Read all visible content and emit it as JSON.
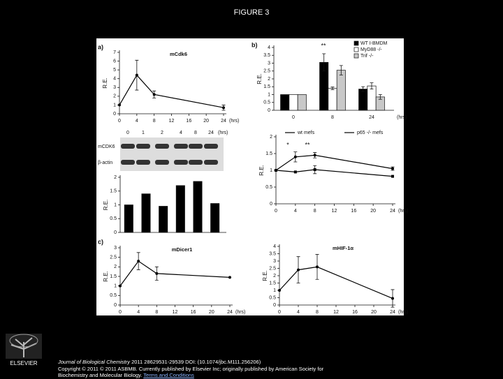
{
  "header": {
    "title": "FIGURE 3"
  },
  "blot": {
    "lanes": [
      "0",
      "1",
      "2",
      "4",
      "8",
      "24"
    ],
    "unit": "(hrs)",
    "rows": [
      "mCDK6",
      "β-actin"
    ]
  },
  "chart_data": [
    {
      "type": "line",
      "panel": "a)",
      "title": "mCdk6",
      "y_label": "R.E.",
      "x_label": "(hrs)",
      "color": "#000000",
      "x": [
        0,
        4,
        8,
        24
      ],
      "values": [
        1,
        4.4,
        2.2,
        0.7
      ],
      "errors": [
        0,
        1.7,
        0.4,
        0.3
      ],
      "xlim": [
        0,
        24
      ],
      "xticks": [
        0,
        4,
        8,
        12,
        16,
        20,
        24
      ],
      "ylim": [
        0,
        7
      ],
      "yticks": [
        0,
        1,
        2,
        3,
        4,
        5,
        6,
        7
      ]
    },
    {
      "type": "bar",
      "y_label": "R.E.",
      "color": "#000000",
      "categories": [
        null,
        null,
        null,
        null,
        null,
        null
      ],
      "values": [
        1,
        1.4,
        0.95,
        1.7,
        1.85,
        1.05
      ],
      "ylim": [
        0,
        2
      ],
      "yticks": [
        0,
        0.5,
        1,
        1.5,
        2
      ]
    },
    {
      "type": "grouped-bar",
      "panel": "b)",
      "y_label": "R.E.",
      "x_label": "(hrs)",
      "annotations": [
        "**"
      ],
      "categories": [
        "0",
        "8",
        "24"
      ],
      "series": [
        {
          "name": "WT I-BMDM",
          "color": "#000000",
          "values": [
            1,
            3.05,
            1.35
          ],
          "errors": [
            0,
            0.55,
            0.15
          ]
        },
        {
          "name": "MyD88 -/-",
          "color": "#ffffff",
          "values": [
            1,
            1.4,
            1.55
          ],
          "errors": [
            0,
            0.08,
            0.2
          ]
        },
        {
          "name": "Trif -/-",
          "color": "#c8c8c8",
          "values": [
            1,
            2.55,
            0.85
          ],
          "errors": [
            0,
            0.3,
            0.15
          ]
        }
      ],
      "ylim": [
        0,
        4
      ],
      "yticks": [
        0,
        0.5,
        1,
        1.5,
        2,
        2.5,
        3,
        3.5,
        4
      ]
    },
    {
      "type": "line",
      "y_label": "R.E.",
      "x_label": "(hrs)",
      "annotations": [
        "*",
        "**"
      ],
      "x": [
        0,
        4,
        8,
        24
      ],
      "series": [
        {
          "name": "wt mefs",
          "color": "#000000",
          "values": [
            1,
            1.4,
            1.45,
            1.05
          ],
          "errors": [
            0,
            0.15,
            0.08,
            0.05
          ]
        },
        {
          "name": "p65 -/- mefs",
          "color": "#000000",
          "values": [
            1,
            0.95,
            1.02,
            0.82
          ],
          "errors": [
            0,
            0,
            0.12,
            0
          ]
        }
      ],
      "xlim": [
        0,
        24
      ],
      "xticks": [
        0,
        4,
        8,
        12,
        16,
        20,
        24
      ],
      "ylim": [
        0,
        2
      ],
      "yticks": [
        0,
        0.5,
        1,
        1.5,
        2
      ]
    },
    {
      "type": "line",
      "panel": "c)",
      "title": "mDicer1",
      "y_label": "R.E.",
      "x_label": "(hrs)",
      "color": "#000000",
      "x": [
        0,
        4,
        8,
        24
      ],
      "values": [
        1,
        2.3,
        1.65,
        1.45
      ],
      "errors": [
        0,
        0.45,
        0.35,
        0
      ],
      "xlim": [
        0,
        24
      ],
      "xticks": [
        0,
        4,
        8,
        12,
        16,
        20,
        24
      ],
      "ylim": [
        0,
        3
      ],
      "yticks": [
        0,
        0.5,
        1,
        1.5,
        2,
        2.5,
        3
      ]
    },
    {
      "type": "line",
      "title": "mHIF-1α",
      "y_label": "R.E.",
      "x_label": "(hrs)",
      "color": "#000000",
      "x": [
        0,
        4,
        8,
        24
      ],
      "values": [
        1,
        2.4,
        2.6,
        0.45
      ],
      "errors": [
        0,
        0.9,
        0.85,
        0.6
      ],
      "xlim": [
        0,
        24
      ],
      "xticks": [
        0,
        4,
        8,
        12,
        16,
        20,
        24
      ],
      "ylim": [
        0,
        4
      ],
      "yticks": [
        0,
        0.5,
        1,
        1.5,
        2,
        2.5,
        3,
        3.5,
        4
      ]
    }
  ],
  "publisher": "ELSEVIER",
  "footer": {
    "journal": "Journal of Biological Chemistry",
    "citation": "2011 28629531-29539 DOI: (10.1074/jbc.M111.256206)",
    "copyright": "Copyright © 2011 © 2011 ASBMB. Currently published by Elsevier Inc; originally published by American Society for Biochemistry and Molecular Biology.",
    "link": "Terms and Conditions"
  }
}
